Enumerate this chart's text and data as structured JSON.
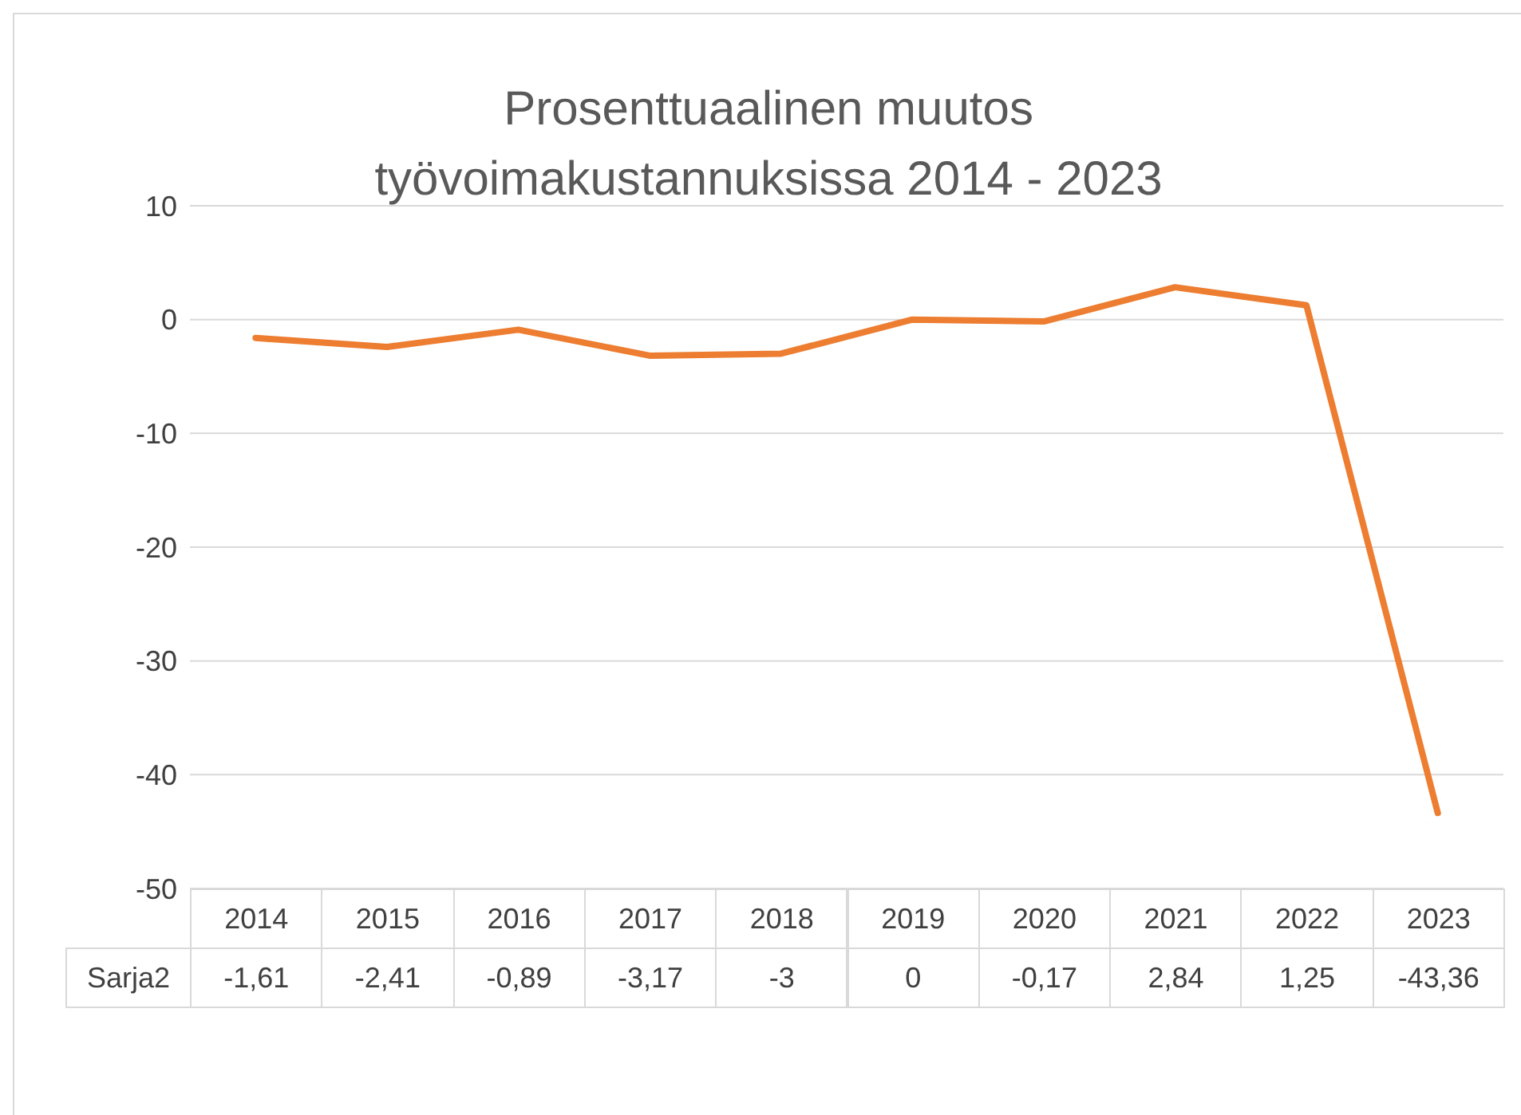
{
  "chart_data": {
    "type": "line",
    "title": "Prosenttuaalinen muutos\ntyövoimakustannuksissa 2014 - 2023",
    "categories": [
      "2014",
      "2015",
      "2016",
      "2017",
      "2018",
      "2019",
      "2020",
      "2021",
      "2022",
      "2023"
    ],
    "series": [
      {
        "name": "Sarja2",
        "color": "#ed7d31",
        "values": [
          -1.61,
          -2.41,
          -0.89,
          -3.17,
          -3,
          0,
          -0.17,
          2.84,
          1.25,
          -43.36
        ],
        "value_labels": [
          "-1,61",
          "-2,41",
          "-0,89",
          "-3,17",
          "-3",
          "0",
          "-0,17",
          "2,84",
          "1,25",
          "-43,36"
        ]
      }
    ],
    "ylim": [
      -50,
      10
    ],
    "yticks": [
      -50,
      -40,
      -30,
      -20,
      -10,
      0,
      10
    ],
    "grid": "y",
    "marker": "none",
    "line_style": "solid"
  }
}
